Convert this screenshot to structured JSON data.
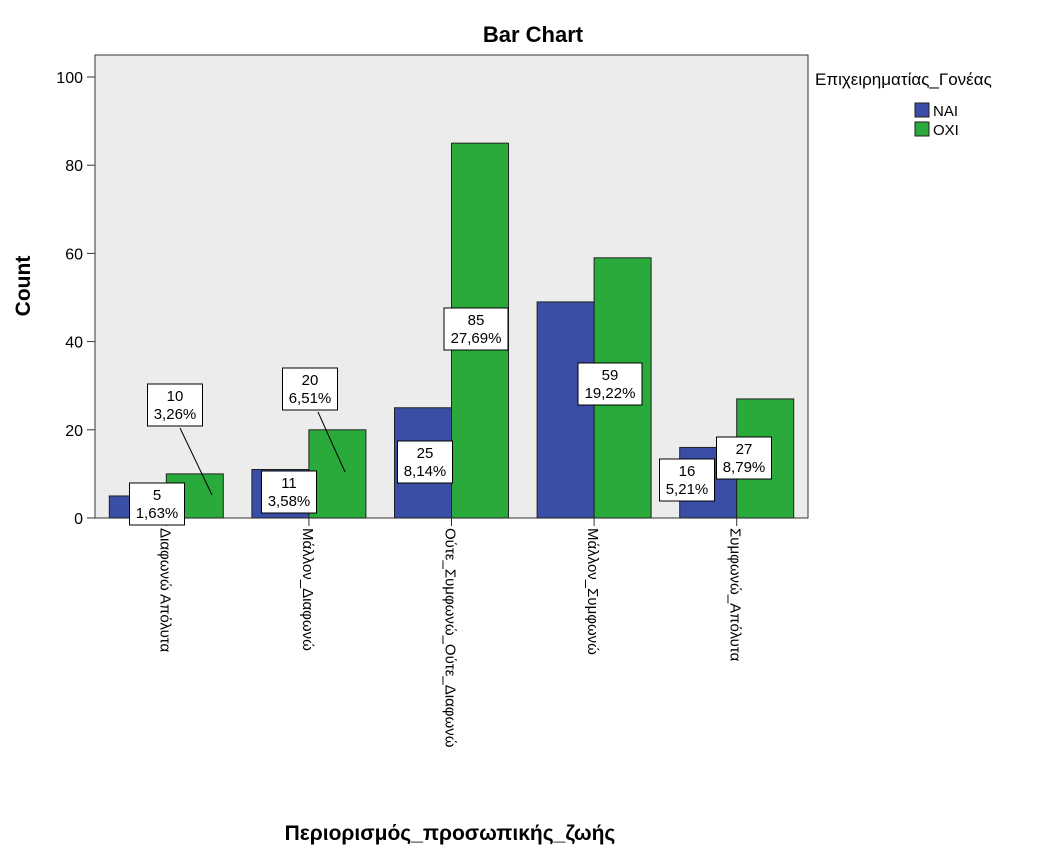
{
  "chart_data": {
    "type": "bar",
    "title": "Bar Chart",
    "xlabel": "Περιορισμός_προσωπικής_ζωής",
    "ylabel": "Count",
    "ylim": [
      0,
      100
    ],
    "yticks": [
      "0",
      "20",
      "40",
      "60",
      "80",
      "100"
    ],
    "grid": false,
    "legend_title": "Επιχειρηματίας_Γονέας",
    "legend_position": "top-right",
    "categories": [
      "Διαφωνώ Απόλυτα",
      "Μάλλον_Διαφωνώ",
      "Ούτε_Συμφωνώ_Ούτε_Διαφωνώ",
      "Μάλλον_Συμφωνώ",
      "Συμφωνώ_Απόλυτα"
    ],
    "series": [
      {
        "name": "ΝΑΙ",
        "color": "#3a4ea6",
        "values": [
          5,
          11,
          25,
          49,
          16
        ],
        "labels": [
          [
            "5",
            "1,63%"
          ],
          [
            "11",
            "3,58%"
          ],
          [
            "25",
            "8,14%"
          ],
          null,
          [
            "16",
            "5,21%"
          ]
        ]
      },
      {
        "name": "ΟΧΙ",
        "color": "#2aaa3a",
        "values": [
          10,
          20,
          85,
          59,
          27
        ],
        "labels": [
          [
            "10",
            "3,26%"
          ],
          [
            "20",
            "6,51%"
          ],
          [
            "85",
            "27,69%"
          ],
          [
            "59",
            "19,22%"
          ],
          [
            "27",
            "8,79%"
          ]
        ]
      }
    ],
    "plot_background": "#ececec"
  }
}
